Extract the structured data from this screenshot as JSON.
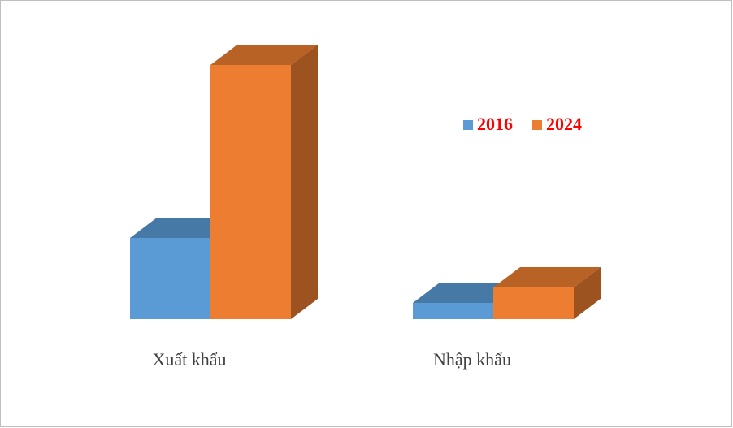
{
  "chart_data": {
    "type": "bar3d",
    "categories": [
      "Xuất khẩu",
      "Nhập khẩu"
    ],
    "series": [
      {
        "name": "2016",
        "color": "#5b9bd5",
        "values": [
          100,
          20
        ]
      },
      {
        "name": "2024",
        "color": "#ed7d31",
        "values": [
          313,
          39
        ]
      }
    ]
  }
}
